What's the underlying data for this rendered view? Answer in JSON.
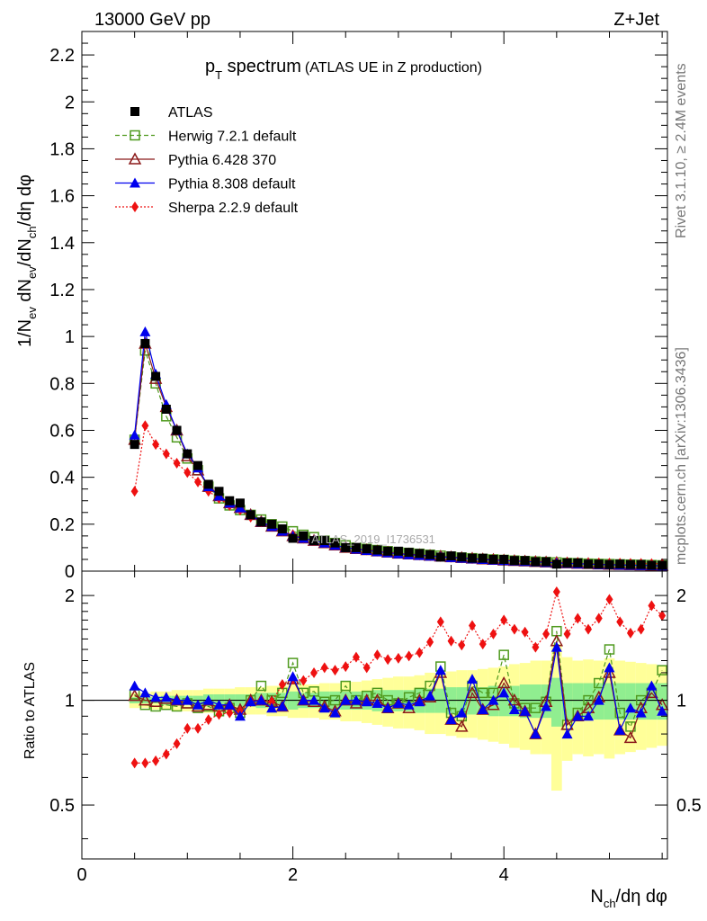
{
  "header": {
    "left": "13000 GeV pp",
    "right": "Z+Jet"
  },
  "title": {
    "main": "p",
    "sub": "T",
    "rest": " spectrum",
    "paren": "(ATLAS UE in Z production)"
  },
  "side_labels": {
    "rivet": "Rivet 3.1.10, ≥ 2.4M events",
    "mcplots": "mcplots.cern.ch [arXiv:1306.3436]"
  },
  "watermark": "ATLAS_2019_I1736531",
  "axes": {
    "ylabel_top": "1/N_ev dN_ev/dN_ch/dη dφ",
    "ylabel_bottom": "Ratio to ATLAS",
    "xlabel": "N_ch/dη dφ"
  },
  "legend": [
    {
      "label": "ATLAS",
      "color": "#000000",
      "marker": "square-filled",
      "line": "none"
    },
    {
      "label": "Herwig 7.2.1 default",
      "color": "#4f9a1e",
      "marker": "square-open",
      "line": "dashed"
    },
    {
      "label": "Pythia 6.428 370",
      "color": "#8b1a1a",
      "marker": "triangle-open",
      "line": "solid"
    },
    {
      "label": "Pythia 8.308 default",
      "color": "#0000ee",
      "marker": "triangle-filled",
      "line": "solid"
    },
    {
      "label": "Sherpa 2.2.9 default",
      "color": "#ee1111",
      "marker": "diamond-filled",
      "line": "dotted"
    }
  ],
  "chart_data": [
    {
      "type": "scatter",
      "panel": "main",
      "xlim": [
        0,
        5.55
      ],
      "ylim": [
        0,
        2.3
      ],
      "yticks": [
        "0",
        "0.2",
        "0.4",
        "0.6",
        "0.8",
        "1",
        "1.2",
        "1.4",
        "1.6",
        "1.8",
        "2",
        "2.2"
      ],
      "x": [
        0.5,
        0.6,
        0.7,
        0.8,
        0.9,
        1.0,
        1.1,
        1.2,
        1.3,
        1.4,
        1.5,
        1.6,
        1.7,
        1.8,
        1.9,
        2.0,
        2.1,
        2.2,
        2.3,
        2.4,
        2.5,
        2.6,
        2.7,
        2.8,
        2.9,
        3.0,
        3.1,
        3.2,
        3.3,
        3.4,
        3.5,
        3.6,
        3.7,
        3.8,
        3.9,
        4.0,
        4.1,
        4.2,
        4.3,
        4.4,
        4.5,
        4.6,
        4.7,
        4.8,
        4.9,
        5.0,
        5.1,
        5.2,
        5.3,
        5.4,
        5.5
      ],
      "series": [
        {
          "name": "ATLAS",
          "values": [
            0.54,
            0.97,
            0.83,
            0.69,
            0.6,
            0.5,
            0.45,
            0.37,
            0.34,
            0.3,
            0.29,
            0.24,
            0.21,
            0.2,
            0.18,
            0.14,
            0.15,
            0.13,
            0.13,
            0.12,
            0.1,
            0.1,
            0.095,
            0.09,
            0.085,
            0.085,
            0.08,
            0.075,
            0.07,
            0.06,
            0.065,
            0.06,
            0.055,
            0.055,
            0.05,
            0.05,
            0.045,
            0.045,
            0.04,
            0.04,
            0.03,
            0.035,
            0.035,
            0.03,
            0.03,
            0.028,
            0.03,
            0.028,
            0.028,
            0.025,
            0.025
          ]
        },
        {
          "name": "Herwig 7.2.1 default",
          "values": [
            0.56,
            0.94,
            0.8,
            0.66,
            0.57,
            0.48,
            0.43,
            0.36,
            0.31,
            0.28,
            0.26,
            0.24,
            0.22,
            0.2,
            0.19,
            0.17,
            0.155,
            0.145,
            0.13,
            0.12,
            0.11,
            0.1,
            0.095,
            0.09,
            0.085,
            0.08,
            0.078,
            0.074,
            0.07,
            0.066,
            0.062,
            0.058,
            0.055,
            0.052,
            0.05,
            0.048,
            0.045,
            0.043,
            0.041,
            0.039,
            0.037,
            0.035,
            0.034,
            0.032,
            0.031,
            0.03,
            0.029,
            0.028,
            0.027,
            0.026,
            0.025
          ]
        },
        {
          "name": "Pythia 6.428 370",
          "values": [
            0.56,
            0.97,
            0.82,
            0.7,
            0.6,
            0.49,
            0.43,
            0.36,
            0.32,
            0.29,
            0.27,
            0.24,
            0.21,
            0.19,
            0.17,
            0.15,
            0.14,
            0.13,
            0.12,
            0.11,
            0.1,
            0.095,
            0.09,
            0.085,
            0.08,
            0.075,
            0.072,
            0.069,
            0.066,
            0.063,
            0.06,
            0.057,
            0.054,
            0.051,
            0.049,
            0.046,
            0.044,
            0.042,
            0.04,
            0.038,
            0.036,
            0.034,
            0.032,
            0.031,
            0.029,
            0.028,
            0.027,
            0.026,
            0.025,
            0.024,
            0.023
          ]
        },
        {
          "name": "Pythia 8.308 default",
          "values": [
            0.58,
            1.02,
            0.84,
            0.71,
            0.6,
            0.5,
            0.44,
            0.36,
            0.32,
            0.29,
            0.27,
            0.24,
            0.21,
            0.19,
            0.17,
            0.15,
            0.14,
            0.13,
            0.12,
            0.11,
            0.1,
            0.094,
            0.088,
            0.083,
            0.078,
            0.074,
            0.07,
            0.067,
            0.064,
            0.061,
            0.058,
            0.055,
            0.052,
            0.05,
            0.047,
            0.045,
            0.043,
            0.041,
            0.039,
            0.037,
            0.035,
            0.033,
            0.031,
            0.03,
            0.028,
            0.027,
            0.026,
            0.025,
            0.024,
            0.023,
            0.022
          ]
        },
        {
          "name": "Sherpa 2.2.9 default",
          "values": [
            0.34,
            0.62,
            0.54,
            0.5,
            0.46,
            0.42,
            0.38,
            0.34,
            0.31,
            0.28,
            0.26,
            0.23,
            0.21,
            0.19,
            0.17,
            0.155,
            0.14,
            0.13,
            0.12,
            0.11,
            0.1,
            0.095,
            0.09,
            0.085,
            0.08,
            0.076,
            0.072,
            0.068,
            0.065,
            0.062,
            0.059,
            0.056,
            0.053,
            0.051,
            0.049,
            0.047,
            0.045,
            0.043,
            0.042,
            0.04,
            0.039,
            0.038,
            0.037,
            0.036,
            0.035,
            0.034,
            0.034,
            0.033,
            0.033,
            0.032,
            0.032
          ]
        }
      ]
    },
    {
      "type": "scatter",
      "panel": "ratio",
      "xlim": [
        0,
        5.55
      ],
      "ylim": [
        0.35,
        2.35
      ],
      "ylog": true,
      "xticks": [
        "0",
        "2",
        "4"
      ],
      "yticks": [
        "0.5",
        "1",
        "2"
      ],
      "x": [
        0.5,
        0.6,
        0.7,
        0.8,
        0.9,
        1.0,
        1.1,
        1.2,
        1.3,
        1.4,
        1.5,
        1.6,
        1.7,
        1.8,
        1.9,
        2.0,
        2.1,
        2.2,
        2.3,
        2.4,
        2.5,
        2.6,
        2.7,
        2.8,
        2.9,
        3.0,
        3.1,
        3.2,
        3.3,
        3.4,
        3.5,
        3.6,
        3.7,
        3.8,
        3.9,
        4.0,
        4.1,
        4.2,
        4.3,
        4.4,
        4.5,
        4.6,
        4.7,
        4.8,
        4.9,
        5.0,
        5.1,
        5.2,
        5.3,
        5.4,
        5.5
      ],
      "band_yellow_half": [
        0.05,
        0.05,
        0.06,
        0.06,
        0.07,
        0.07,
        0.07,
        0.08,
        0.08,
        0.08,
        0.09,
        0.09,
        0.09,
        0.1,
        0.1,
        0.11,
        0.11,
        0.11,
        0.12,
        0.12,
        0.13,
        0.13,
        0.14,
        0.15,
        0.16,
        0.17,
        0.17,
        0.18,
        0.2,
        0.2,
        0.21,
        0.22,
        0.22,
        0.23,
        0.24,
        0.25,
        0.27,
        0.28,
        0.3,
        0.3,
        0.45,
        0.33,
        0.3,
        0.31,
        0.3,
        0.32,
        0.3,
        0.29,
        0.28,
        0.27,
        0.26
      ],
      "band_green_half": [
        0.02,
        0.02,
        0.02,
        0.03,
        0.03,
        0.03,
        0.03,
        0.04,
        0.04,
        0.04,
        0.04,
        0.04,
        0.05,
        0.05,
        0.05,
        0.06,
        0.05,
        0.05,
        0.06,
        0.06,
        0.06,
        0.06,
        0.06,
        0.07,
        0.07,
        0.07,
        0.07,
        0.08,
        0.08,
        0.08,
        0.09,
        0.09,
        0.09,
        0.09,
        0.1,
        0.1,
        0.1,
        0.11,
        0.11,
        0.11,
        0.16,
        0.12,
        0.12,
        0.12,
        0.12,
        0.12,
        0.12,
        0.12,
        0.12,
        0.12,
        0.12
      ],
      "series": [
        {
          "name": "Herwig 7.2.1 default",
          "values": [
            1.04,
            0.97,
            0.96,
            0.97,
            0.96,
            0.98,
            0.95,
            0.96,
            0.93,
            0.95,
            0.92,
            1.0,
            1.1,
            1.0,
            1.05,
            1.28,
            1.05,
            1.06,
            0.99,
            1.0,
            1.1,
            1.0,
            1.03,
            1.05,
            1.0,
            0.98,
            1.02,
            1.05,
            1.1,
            1.25,
            0.92,
            0.9,
            1.1,
            1.05,
            1.05,
            1.35,
            0.98,
            0.95,
            0.95,
            0.99,
            1.58,
            0.85,
            0.92,
            1.0,
            1.12,
            1.4,
            0.92,
            0.84,
            1.0,
            1.05,
            1.22
          ]
        },
        {
          "name": "Pythia 6.428 370",
          "values": [
            1.03,
            1.0,
            0.99,
            1.01,
            1.0,
            0.98,
            0.96,
            0.97,
            0.96,
            0.97,
            0.94,
            1.0,
            1.0,
            0.99,
            0.96,
            1.15,
            1.0,
            0.99,
            0.96,
            0.93,
            1.0,
            0.98,
            1.0,
            1.0,
            0.95,
            0.98,
            0.95,
            1.0,
            1.02,
            1.2,
            0.88,
            0.84,
            1.05,
            0.94,
            0.97,
            1.12,
            1.0,
            0.93,
            0.8,
            0.99,
            1.48,
            0.85,
            0.9,
            0.95,
            1.02,
            1.2,
            0.82,
            0.78,
            0.95,
            1.05,
            0.97
          ]
        },
        {
          "name": "Pythia 8.308 default",
          "values": [
            1.1,
            1.05,
            1.02,
            1.02,
            1.0,
            1.0,
            0.97,
            1.0,
            0.97,
            0.97,
            0.9,
            0.99,
            1.0,
            0.95,
            0.96,
            1.17,
            1.0,
            1.0,
            0.95,
            0.92,
            1.0,
            1.0,
            0.99,
            0.98,
            0.95,
            0.98,
            0.97,
            0.99,
            1.03,
            1.22,
            0.88,
            0.92,
            1.15,
            0.94,
            1.0,
            1.05,
            0.94,
            0.93,
            0.8,
            0.96,
            1.42,
            0.8,
            0.9,
            0.9,
            1.0,
            1.24,
            0.82,
            0.95,
            0.92,
            1.1,
            0.93
          ]
        },
        {
          "name": "Sherpa 2.2.9 default",
          "values": [
            0.66,
            0.66,
            0.67,
            0.7,
            0.75,
            0.83,
            0.83,
            0.88,
            0.91,
            0.92,
            0.93,
            0.99,
            1.0,
            0.99,
            1.11,
            1.15,
            1.14,
            1.2,
            1.24,
            1.22,
            1.25,
            1.33,
            1.24,
            1.35,
            1.31,
            1.32,
            1.34,
            1.37,
            1.47,
            1.68,
            1.48,
            1.44,
            1.64,
            1.45,
            1.55,
            1.7,
            1.6,
            1.57,
            1.42,
            1.55,
            2.05,
            1.55,
            1.72,
            1.6,
            1.72,
            1.95,
            1.68,
            1.56,
            1.6,
            1.87,
            1.75
          ]
        }
      ]
    }
  ]
}
